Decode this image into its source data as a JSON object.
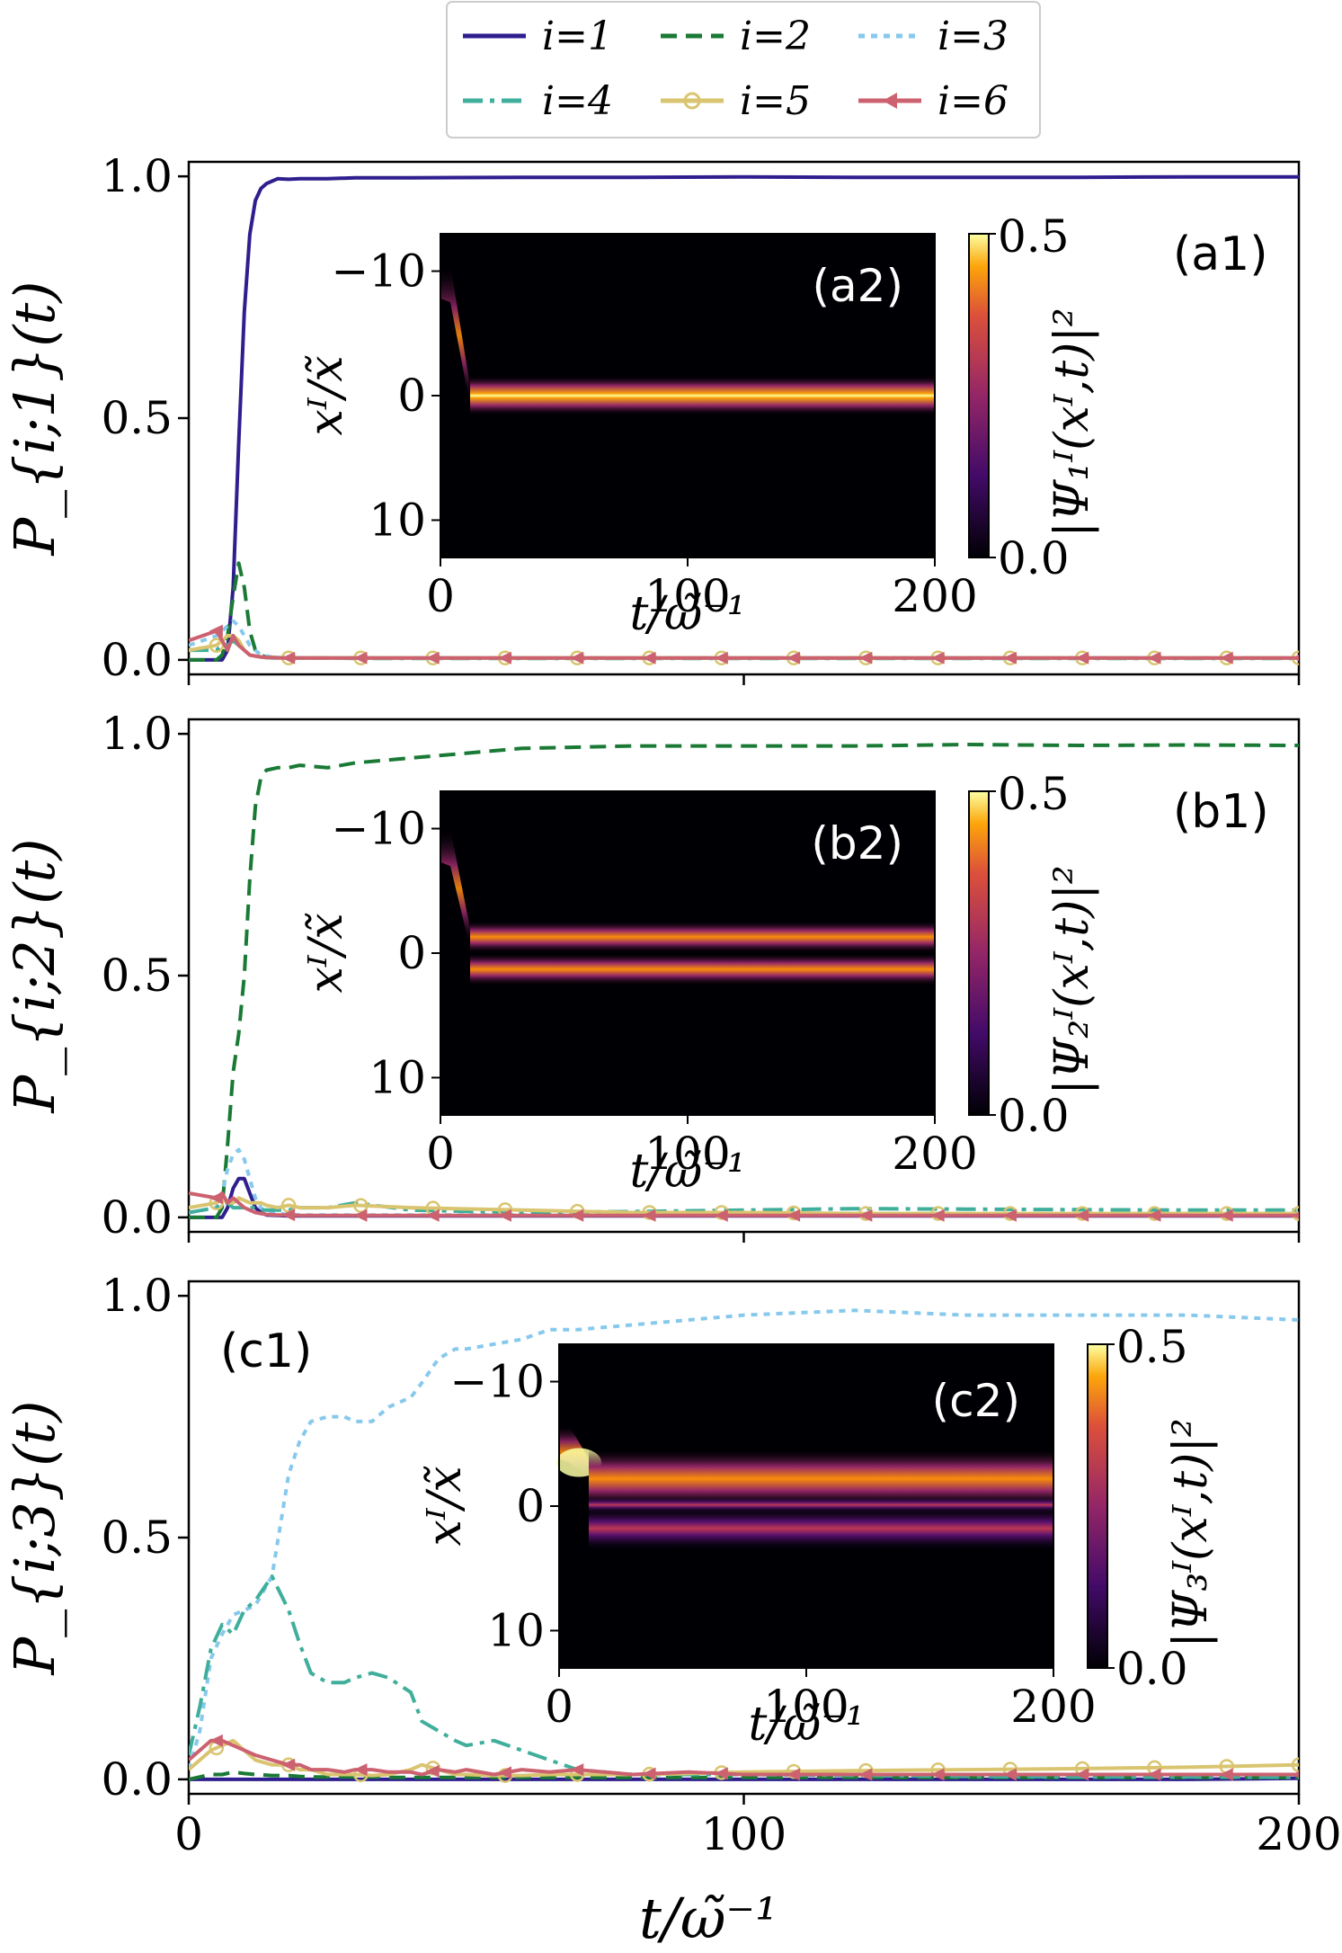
{
  "legend": [
    {
      "name": "i=1",
      "color": "#2e1e8e",
      "dash": "",
      "marker": "none"
    },
    {
      "name": "i=2",
      "color": "#1a7a35",
      "dash": "18 10",
      "marker": "none"
    },
    {
      "name": "i=3",
      "color": "#87c9ec",
      "dash": "7 7",
      "marker": "none"
    },
    {
      "name": "i=4",
      "color": "#3fae9b",
      "dash": "22 8 5 8",
      "marker": "none"
    },
    {
      "name": "i=5",
      "color": "#d9c46f",
      "dash": "",
      "marker": "circle"
    },
    {
      "name": "i=6",
      "color": "#cc6170",
      "dash": "",
      "marker": "triangle-left"
    }
  ],
  "shared_x_axis": {
    "label": "t/ω̃⁻¹",
    "ticks": [
      "0",
      "100",
      "200"
    ],
    "range": [
      0,
      200
    ]
  },
  "y_ticks": [
    "0.0",
    "0.5",
    "1.0"
  ],
  "colorbar_ticks": [
    "0.5",
    "0.0"
  ],
  "inset_axes": {
    "xlabel": "t/ω̃⁻¹",
    "ylabel": "xᴵ/x̃",
    "xticks": [
      "0",
      "100",
      "200"
    ],
    "yticks": [
      "−10",
      "0",
      "10"
    ]
  },
  "chart_data": [
    {
      "type": "line",
      "panel": "a1",
      "ylabel": "P_{i;1}(t)",
      "xlim": [
        0,
        200
      ],
      "ylim": [
        0,
        1
      ],
      "x": [
        0,
        5,
        6,
        7,
        8,
        9,
        10,
        11,
        12,
        13,
        14,
        15,
        16,
        18,
        20,
        25,
        30,
        40,
        60,
        80,
        100,
        120,
        140,
        160,
        180,
        200
      ],
      "series": [
        {
          "name": "i=1",
          "values": [
            0,
            0,
            0,
            0.02,
            0.15,
            0.45,
            0.72,
            0.88,
            0.95,
            0.975,
            0.985,
            0.99,
            0.995,
            0.994,
            0.995,
            0.995,
            0.997,
            0.997,
            0.998,
            0.998,
            0.999,
            0.998,
            0.998,
            0.998,
            0.999,
            0.999
          ]
        },
        {
          "name": "i=2",
          "values": [
            0,
            0,
            0.01,
            0.05,
            0.13,
            0.2,
            0.15,
            0.06,
            0.02,
            0.01,
            0.005,
            0.005,
            0.005,
            0.004,
            0.004,
            0.004,
            0.004,
            0.004,
            0.004,
            0.004,
            0.004,
            0.004,
            0.004,
            0.004,
            0.004,
            0.004
          ]
        },
        {
          "name": "i=3",
          "values": [
            0.03,
            0.05,
            0.06,
            0.07,
            0.08,
            0.07,
            0.05,
            0.03,
            0.02,
            0.01,
            0.008,
            0.006,
            0.005,
            0.005,
            0.004,
            0.004,
            0.004,
            0.004,
            0.004,
            0.004,
            0.004,
            0.004,
            0.004,
            0.004,
            0.004,
            0.004
          ]
        },
        {
          "name": "i=4",
          "values": [
            0.02,
            0.02,
            0.03,
            0.03,
            0.04,
            0.03,
            0.02,
            0.01,
            0.008,
            0.006,
            0.005,
            0.004,
            0.004,
            0.004,
            0.004,
            0.004,
            0.003,
            0.003,
            0.003,
            0.003,
            0.003,
            0.003,
            0.003,
            0.003,
            0.003,
            0.003
          ]
        },
        {
          "name": "i=5",
          "values": [
            0.02,
            0.03,
            0.04,
            0.05,
            0.05,
            0.04,
            0.02,
            0.01,
            0.008,
            0.006,
            0.005,
            0.005,
            0.005,
            0.004,
            0.004,
            0.004,
            0.004,
            0.004,
            0.004,
            0.004,
            0.004,
            0.004,
            0.004,
            0.004,
            0.004,
            0.004
          ]
        },
        {
          "name": "i=6",
          "values": [
            0.04,
            0.06,
            0.04,
            0.02,
            0.05,
            0.03,
            0.02,
            0.01,
            0.008,
            0.006,
            0.005,
            0.005,
            0.004,
            0.004,
            0.004,
            0.004,
            0.004,
            0.004,
            0.004,
            0.004,
            0.004,
            0.004,
            0.004,
            0.004,
            0.004,
            0.004
          ]
        }
      ],
      "inset": {
        "tag": "(a2)",
        "colorbar_label": "|Ψ₁ᴵ(xᴵ,t)|²",
        "colorbar_range": [
          0,
          0.5
        ],
        "pattern": "single-band",
        "xlim": [
          0,
          200
        ],
        "ylim": [
          -13,
          13
        ]
      },
      "tag": "(a1)"
    },
    {
      "type": "line",
      "panel": "b1",
      "ylabel": "P_{i;2}(t)",
      "xlim": [
        0,
        200
      ],
      "ylim": [
        0,
        1
      ],
      "x": [
        0,
        5,
        6,
        7,
        8,
        9,
        10,
        11,
        12,
        13,
        14,
        16,
        18,
        20,
        25,
        30,
        40,
        60,
        80,
        100,
        120,
        140,
        160,
        180,
        200
      ],
      "series": [
        {
          "name": "i=1",
          "values": [
            0,
            0,
            0,
            0.02,
            0.06,
            0.08,
            0.08,
            0.05,
            0.02,
            0.01,
            0.005,
            0.004,
            0.003,
            0.003,
            0.003,
            0.003,
            0.003,
            0.003,
            0.003,
            0.003,
            0.003,
            0.003,
            0.003,
            0.003,
            0.003
          ]
        },
        {
          "name": "i=2",
          "values": [
            0,
            0,
            0.02,
            0.15,
            0.3,
            0.38,
            0.5,
            0.7,
            0.85,
            0.91,
            0.925,
            0.93,
            0.93,
            0.935,
            0.93,
            0.94,
            0.95,
            0.97,
            0.975,
            0.975,
            0.975,
            0.978,
            0.976,
            0.977,
            0.976
          ]
        },
        {
          "name": "i=3",
          "values": [
            0.01,
            0.02,
            0.05,
            0.1,
            0.13,
            0.14,
            0.12,
            0.08,
            0.04,
            0.02,
            0.01,
            0.008,
            0.006,
            0.005,
            0.005,
            0.005,
            0.005,
            0.005,
            0.005,
            0.005,
            0.005,
            0.005,
            0.005,
            0.005,
            0.005
          ]
        },
        {
          "name": "i=4",
          "values": [
            0.01,
            0.02,
            0.03,
            0.03,
            0.02,
            0.02,
            0.02,
            0.02,
            0.02,
            0.015,
            0.015,
            0.015,
            0.015,
            0.02,
            0.02,
            0.03,
            0.015,
            0.01,
            0.012,
            0.015,
            0.018,
            0.017,
            0.016,
            0.015,
            0.015
          ]
        },
        {
          "name": "i=5",
          "values": [
            0.02,
            0.03,
            0.04,
            0.03,
            0.03,
            0.04,
            0.035,
            0.03,
            0.03,
            0.03,
            0.025,
            0.02,
            0.025,
            0.02,
            0.02,
            0.025,
            0.02,
            0.015,
            0.01,
            0.01,
            0.008,
            0.008,
            0.008,
            0.008,
            0.008
          ]
        },
        {
          "name": "i=6",
          "values": [
            0.05,
            0.04,
            0.05,
            0.03,
            0.04,
            0.03,
            0.02,
            0.015,
            0.01,
            0.008,
            0.006,
            0.005,
            0.005,
            0.004,
            0.004,
            0.004,
            0.004,
            0.004,
            0.004,
            0.004,
            0.004,
            0.004,
            0.004,
            0.004,
            0.004
          ]
        }
      ],
      "inset": {
        "tag": "(b2)",
        "colorbar_label": "|Ψ₂ᴵ(xᴵ,t)|²",
        "colorbar_range": [
          0,
          0.5
        ],
        "pattern": "two-bands",
        "xlim": [
          0,
          200
        ],
        "ylim": [
          -13,
          13
        ]
      },
      "tag": "(b1)"
    },
    {
      "type": "line",
      "panel": "c1",
      "ylabel": "P_{i;3}(t)",
      "xlim": [
        0,
        200
      ],
      "ylim": [
        0,
        1
      ],
      "x": [
        0,
        2,
        4,
        6,
        8,
        10,
        12,
        15,
        18,
        20,
        22,
        25,
        28,
        30,
        33,
        36,
        40,
        42,
        45,
        48,
        50,
        55,
        60,
        65,
        70,
        80,
        90,
        100,
        120,
        140,
        160,
        180,
        200
      ],
      "series": [
        {
          "name": "i=1",
          "values": [
            0,
            0,
            0,
            0,
            0,
            0,
            0,
            0,
            0,
            0,
            0,
            0,
            0,
            0,
            0,
            0,
            0,
            0,
            0,
            0,
            0,
            0,
            0,
            0,
            0,
            0,
            0,
            0,
            0,
            0,
            0,
            0,
            0.002
          ]
        },
        {
          "name": "i=2",
          "values": [
            0,
            0.005,
            0.01,
            0.01,
            0.015,
            0.012,
            0.01,
            0.008,
            0.008,
            0.006,
            0.005,
            0.005,
            0.005,
            0.005,
            0.005,
            0.004,
            0.004,
            0.004,
            0.004,
            0.004,
            0.004,
            0.004,
            0.004,
            0.004,
            0.004,
            0.004,
            0.004,
            0.004,
            0.004,
            0.004,
            0.004,
            0.004,
            0.004
          ]
        },
        {
          "name": "i=3",
          "values": [
            0.02,
            0.1,
            0.25,
            0.3,
            0.34,
            0.35,
            0.36,
            0.42,
            0.63,
            0.7,
            0.74,
            0.75,
            0.75,
            0.74,
            0.74,
            0.77,
            0.79,
            0.82,
            0.87,
            0.89,
            0.89,
            0.9,
            0.91,
            0.93,
            0.93,
            0.94,
            0.95,
            0.96,
            0.97,
            0.96,
            0.96,
            0.96,
            0.95
          ]
        },
        {
          "name": "i=4",
          "values": [
            0.05,
            0.15,
            0.27,
            0.32,
            0.3,
            0.35,
            0.37,
            0.42,
            0.35,
            0.28,
            0.22,
            0.2,
            0.2,
            0.21,
            0.22,
            0.21,
            0.18,
            0.12,
            0.1,
            0.08,
            0.07,
            0.08,
            0.06,
            0.04,
            0.02,
            0.01,
            0.01,
            0.01,
            0.008,
            0.006,
            0.005,
            0.005,
            0.004
          ]
        },
        {
          "name": "i=5",
          "values": [
            0.02,
            0.04,
            0.06,
            0.07,
            0.08,
            0.06,
            0.04,
            0.03,
            0.03,
            0.02,
            0.02,
            0.01,
            0.01,
            0.01,
            0.008,
            0.01,
            0.02,
            0.03,
            0.02,
            0.01,
            0.01,
            0.008,
            0.008,
            0.01,
            0.01,
            0.01,
            0.012,
            0.015,
            0.018,
            0.02,
            0.022,
            0.025,
            0.03
          ]
        },
        {
          "name": "i=6",
          "values": [
            0.04,
            0.06,
            0.08,
            0.08,
            0.07,
            0.06,
            0.05,
            0.04,
            0.03,
            0.03,
            0.02,
            0.02,
            0.015,
            0.02,
            0.02,
            0.015,
            0.015,
            0.01,
            0.02,
            0.015,
            0.02,
            0.01,
            0.02,
            0.015,
            0.02,
            0.01,
            0.015,
            0.01,
            0.01,
            0.01,
            0.01,
            0.01,
            0.01
          ]
        }
      ],
      "inset": {
        "tag": "(c2)",
        "colorbar_label": "|Ψ₃ᴵ(xᴵ,t)|²",
        "colorbar_range": [
          0,
          0.5
        ],
        "pattern": "three-bands",
        "xlim": [
          0,
          200
        ],
        "ylim": [
          -13,
          13
        ]
      },
      "tag": "(c1)"
    }
  ]
}
